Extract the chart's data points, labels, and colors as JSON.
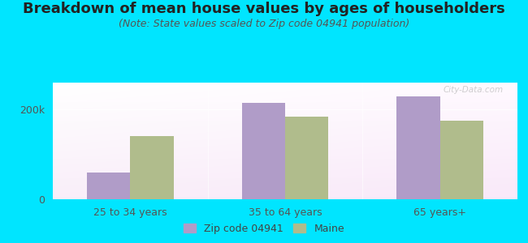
{
  "title": "Breakdown of mean house values by ages of householders",
  "subtitle": "(Note: State values scaled to Zip code 04941 population)",
  "categories": [
    "25 to 34 years",
    "35 to 64 years",
    "65 years+"
  ],
  "zip_values": [
    60000,
    215000,
    230000
  ],
  "maine_values": [
    140000,
    185000,
    175000
  ],
  "zip_color": "#b09cc8",
  "maine_color": "#b0bc8c",
  "ylim": [
    0,
    260000
  ],
  "yticks": [
    0,
    200000
  ],
  "ytick_labels": [
    "0",
    "200k"
  ],
  "legend_zip": "Zip code 04941",
  "legend_maine": "Maine",
  "background_outer": "#00e5ff",
  "title_fontsize": 13,
  "subtitle_fontsize": 9,
  "watermark": "City-Data.com"
}
